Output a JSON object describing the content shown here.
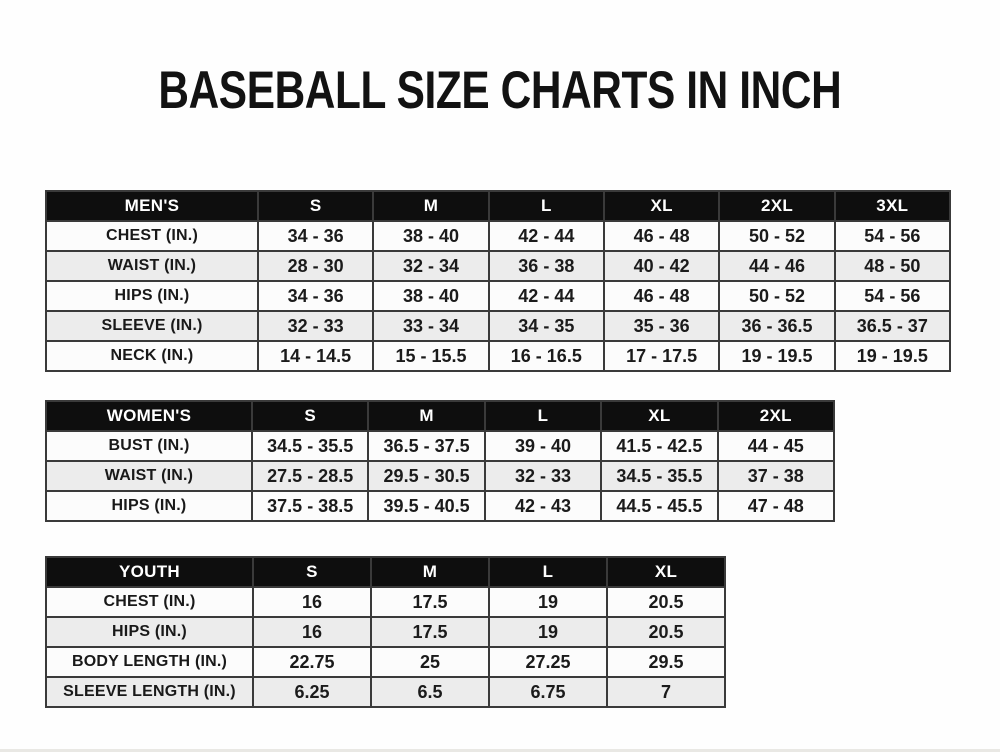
{
  "page": {
    "title": "BASEBALL SIZE CHARTS IN INCH"
  },
  "colors": {
    "header_bg": "#0e0e0e",
    "header_text": "#ffffff",
    "row_bg": "#fcfcfc",
    "row_alt_bg": "#ececec",
    "border": "#3a3a3a"
  },
  "tables": [
    {
      "name": "mens",
      "header": [
        "MEN'S",
        "S",
        "M",
        "L",
        "XL",
        "2XL",
        "3XL"
      ],
      "rows": [
        {
          "label": "CHEST (IN.)",
          "values": [
            "34 - 36",
            "38 - 40",
            "42 - 44",
            "46 - 48",
            "50 - 52",
            "54 - 56"
          ]
        },
        {
          "label": "WAIST (IN.)",
          "values": [
            "28 - 30",
            "32 - 34",
            "36 - 38",
            "40 - 42",
            "44 - 46",
            "48 - 50"
          ]
        },
        {
          "label": "HIPS (IN.)",
          "values": [
            "34 - 36",
            "38 - 40",
            "42 - 44",
            "46 - 48",
            "50 - 52",
            "54 - 56"
          ]
        },
        {
          "label": "SLEEVE (IN.)",
          "values": [
            "32 - 33",
            "33 - 34",
            "34 - 35",
            "35 - 36",
            "36 - 36.5",
            "36.5 - 37"
          ]
        },
        {
          "label": "NECK (IN.)",
          "values": [
            "14 - 14.5",
            "15 - 15.5",
            "16 - 16.5",
            "17 - 17.5",
            "19 - 19.5",
            "19 - 19.5"
          ]
        }
      ]
    },
    {
      "name": "womens",
      "header": [
        "WOMEN'S",
        "S",
        "M",
        "L",
        "XL",
        "2XL"
      ],
      "rows": [
        {
          "label": "BUST (IN.)",
          "values": [
            "34.5 - 35.5",
            "36.5 - 37.5",
            "39 - 40",
            "41.5 - 42.5",
            "44 - 45"
          ]
        },
        {
          "label": "WAIST (IN.)",
          "values": [
            "27.5 - 28.5",
            "29.5 - 30.5",
            "32 - 33",
            "34.5 - 35.5",
            "37 - 38"
          ]
        },
        {
          "label": "HIPS (IN.)",
          "values": [
            "37.5 - 38.5",
            "39.5 - 40.5",
            "42 - 43",
            "44.5 - 45.5",
            "47 - 48"
          ]
        }
      ]
    },
    {
      "name": "youth",
      "header": [
        "YOUTH",
        "S",
        "M",
        "L",
        "XL"
      ],
      "rows": [
        {
          "label": "CHEST (IN.)",
          "values": [
            "16",
            "17.5",
            "19",
            "20.5"
          ]
        },
        {
          "label": "HIPS (IN.)",
          "values": [
            "16",
            "17.5",
            "19",
            "20.5"
          ]
        },
        {
          "label": "BODY LENGTH (IN.)",
          "values": [
            "22.75",
            "25",
            "27.25",
            "29.5"
          ]
        },
        {
          "label": "SLEEVE LENGTH (IN.)",
          "values": [
            "6.25",
            "6.5",
            "6.75",
            "7"
          ]
        }
      ]
    }
  ]
}
